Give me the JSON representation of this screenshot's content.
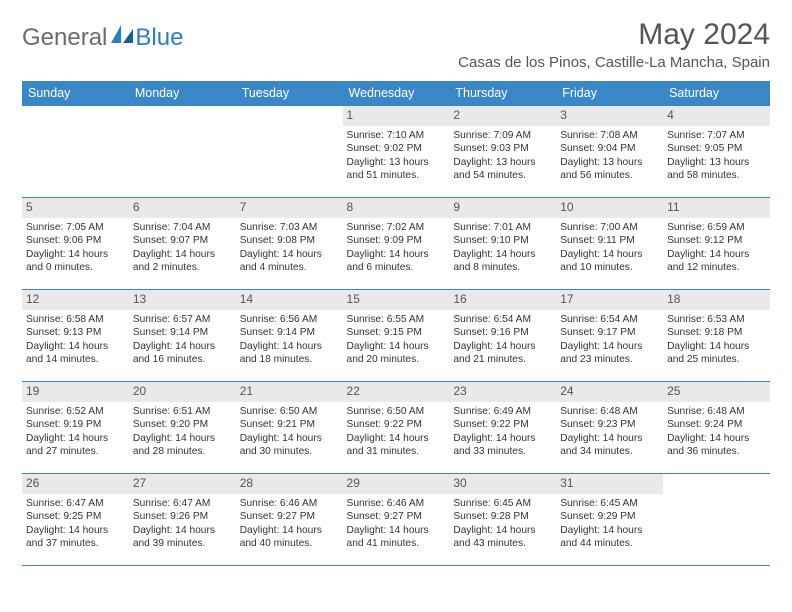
{
  "logo": {
    "part1": "General",
    "part2": "Blue"
  },
  "title": "May 2024",
  "location": "Casas de los Pinos, Castille-La Mancha, Spain",
  "colors": {
    "header_bg": "#3a87c7",
    "header_text": "#ffffff",
    "daynum_bg": "#e9e9e9",
    "border": "#3a87c7",
    "logo_gray": "#6b6b6b",
    "logo_blue": "#2a7fbf",
    "body_text": "#333333"
  },
  "day_headers": [
    "Sunday",
    "Monday",
    "Tuesday",
    "Wednesday",
    "Thursday",
    "Friday",
    "Saturday"
  ],
  "weeks": [
    [
      {
        "empty": true
      },
      {
        "empty": true
      },
      {
        "empty": true
      },
      {
        "n": "1",
        "sr": "7:10 AM",
        "ss": "9:02 PM",
        "dl": "13 hours and 51 minutes."
      },
      {
        "n": "2",
        "sr": "7:09 AM",
        "ss": "9:03 PM",
        "dl": "13 hours and 54 minutes."
      },
      {
        "n": "3",
        "sr": "7:08 AM",
        "ss": "9:04 PM",
        "dl": "13 hours and 56 minutes."
      },
      {
        "n": "4",
        "sr": "7:07 AM",
        "ss": "9:05 PM",
        "dl": "13 hours and 58 minutes."
      }
    ],
    [
      {
        "n": "5",
        "sr": "7:05 AM",
        "ss": "9:06 PM",
        "dl": "14 hours and 0 minutes."
      },
      {
        "n": "6",
        "sr": "7:04 AM",
        "ss": "9:07 PM",
        "dl": "14 hours and 2 minutes."
      },
      {
        "n": "7",
        "sr": "7:03 AM",
        "ss": "9:08 PM",
        "dl": "14 hours and 4 minutes."
      },
      {
        "n": "8",
        "sr": "7:02 AM",
        "ss": "9:09 PM",
        "dl": "14 hours and 6 minutes."
      },
      {
        "n": "9",
        "sr": "7:01 AM",
        "ss": "9:10 PM",
        "dl": "14 hours and 8 minutes."
      },
      {
        "n": "10",
        "sr": "7:00 AM",
        "ss": "9:11 PM",
        "dl": "14 hours and 10 minutes."
      },
      {
        "n": "11",
        "sr": "6:59 AM",
        "ss": "9:12 PM",
        "dl": "14 hours and 12 minutes."
      }
    ],
    [
      {
        "n": "12",
        "sr": "6:58 AM",
        "ss": "9:13 PM",
        "dl": "14 hours and 14 minutes."
      },
      {
        "n": "13",
        "sr": "6:57 AM",
        "ss": "9:14 PM",
        "dl": "14 hours and 16 minutes."
      },
      {
        "n": "14",
        "sr": "6:56 AM",
        "ss": "9:14 PM",
        "dl": "14 hours and 18 minutes."
      },
      {
        "n": "15",
        "sr": "6:55 AM",
        "ss": "9:15 PM",
        "dl": "14 hours and 20 minutes."
      },
      {
        "n": "16",
        "sr": "6:54 AM",
        "ss": "9:16 PM",
        "dl": "14 hours and 21 minutes."
      },
      {
        "n": "17",
        "sr": "6:54 AM",
        "ss": "9:17 PM",
        "dl": "14 hours and 23 minutes."
      },
      {
        "n": "18",
        "sr": "6:53 AM",
        "ss": "9:18 PM",
        "dl": "14 hours and 25 minutes."
      }
    ],
    [
      {
        "n": "19",
        "sr": "6:52 AM",
        "ss": "9:19 PM",
        "dl": "14 hours and 27 minutes."
      },
      {
        "n": "20",
        "sr": "6:51 AM",
        "ss": "9:20 PM",
        "dl": "14 hours and 28 minutes."
      },
      {
        "n": "21",
        "sr": "6:50 AM",
        "ss": "9:21 PM",
        "dl": "14 hours and 30 minutes."
      },
      {
        "n": "22",
        "sr": "6:50 AM",
        "ss": "9:22 PM",
        "dl": "14 hours and 31 minutes."
      },
      {
        "n": "23",
        "sr": "6:49 AM",
        "ss": "9:22 PM",
        "dl": "14 hours and 33 minutes."
      },
      {
        "n": "24",
        "sr": "6:48 AM",
        "ss": "9:23 PM",
        "dl": "14 hours and 34 minutes."
      },
      {
        "n": "25",
        "sr": "6:48 AM",
        "ss": "9:24 PM",
        "dl": "14 hours and 36 minutes."
      }
    ],
    [
      {
        "n": "26",
        "sr": "6:47 AM",
        "ss": "9:25 PM",
        "dl": "14 hours and 37 minutes."
      },
      {
        "n": "27",
        "sr": "6:47 AM",
        "ss": "9:26 PM",
        "dl": "14 hours and 39 minutes."
      },
      {
        "n": "28",
        "sr": "6:46 AM",
        "ss": "9:27 PM",
        "dl": "14 hours and 40 minutes."
      },
      {
        "n": "29",
        "sr": "6:46 AM",
        "ss": "9:27 PM",
        "dl": "14 hours and 41 minutes."
      },
      {
        "n": "30",
        "sr": "6:45 AM",
        "ss": "9:28 PM",
        "dl": "14 hours and 43 minutes."
      },
      {
        "n": "31",
        "sr": "6:45 AM",
        "ss": "9:29 PM",
        "dl": "14 hours and 44 minutes."
      },
      {
        "empty": true
      }
    ]
  ],
  "labels": {
    "sunrise": "Sunrise:",
    "sunset": "Sunset:",
    "daylight": "Daylight:"
  }
}
